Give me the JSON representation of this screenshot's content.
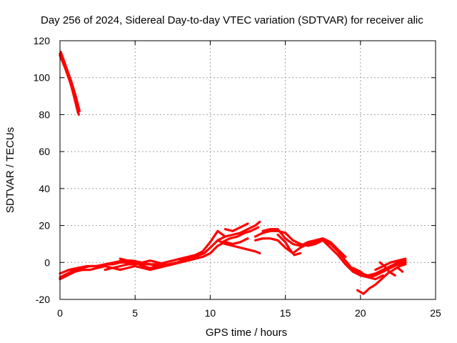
{
  "chart_data": {
    "type": "scatter",
    "title": "Day 256 of 2024, Sidereal Day-to-day VTEC variation (SDTVAR) for receiver alic",
    "xlabel": "GPS time / hours",
    "ylabel": "SDTVAR / TECUs",
    "xlim": [
      0,
      25
    ],
    "ylim": [
      -20,
      120
    ],
    "xticks": [
      0,
      5,
      10,
      15,
      20,
      25
    ],
    "yticks": [
      -20,
      0,
      20,
      40,
      60,
      80,
      100,
      120
    ],
    "grid": true,
    "series_color": "#ff0000",
    "series": [
      {
        "segments": [
          [
            [
              0.0,
              113
            ],
            [
              0.3,
              107
            ],
            [
              0.6,
              100
            ],
            [
              0.9,
              91
            ],
            [
              1.2,
              81
            ]
          ],
          [
            [
              0.0,
              112
            ],
            [
              0.35,
              105
            ],
            [
              0.7,
              97
            ],
            [
              1.0,
              89
            ],
            [
              1.25,
              80
            ]
          ],
          [
            [
              0.05,
              114
            ],
            [
              0.4,
              106
            ],
            [
              0.75,
              98
            ],
            [
              1.05,
              90
            ],
            [
              1.3,
              82
            ]
          ],
          [
            [
              0.0,
              -8
            ],
            [
              0.5,
              -6
            ],
            [
              1.0,
              -4
            ],
            [
              1.5,
              -3
            ],
            [
              2.0,
              -2
            ],
            [
              2.5,
              -2
            ],
            [
              3.0,
              -1
            ],
            [
              3.5,
              -1
            ],
            [
              4.0,
              0
            ],
            [
              4.5,
              0
            ],
            [
              5.0,
              0
            ],
            [
              5.5,
              -1
            ],
            [
              6.0,
              -1
            ],
            [
              6.5,
              -1
            ],
            [
              7.0,
              0
            ],
            [
              7.5,
              1
            ],
            [
              8.0,
              2
            ],
            [
              8.5,
              3
            ],
            [
              9.0,
              4
            ],
            [
              9.5,
              6
            ],
            [
              10.0,
              11
            ],
            [
              10.5,
              17
            ],
            [
              11.0,
              14
            ]
          ],
          [
            [
              0.0,
              -6
            ],
            [
              0.6,
              -4
            ],
            [
              1.2,
              -3
            ],
            [
              1.8,
              -2
            ],
            [
              2.4,
              -2
            ],
            [
              3.0,
              -1
            ],
            [
              3.6,
              0
            ],
            [
              4.2,
              1
            ],
            [
              4.8,
              1
            ],
            [
              5.4,
              0
            ],
            [
              6.0,
              -1
            ],
            [
              6.6,
              -2
            ],
            [
              7.2,
              -1
            ],
            [
              7.8,
              0
            ],
            [
              8.4,
              2
            ],
            [
              9.0,
              3
            ],
            [
              9.6,
              5
            ],
            [
              10.0,
              8
            ],
            [
              10.5,
              12
            ],
            [
              11.0,
              10
            ],
            [
              11.5,
              9
            ],
            [
              12.0,
              8
            ],
            [
              12.5,
              7
            ],
            [
              13.0,
              6
            ],
            [
              13.3,
              5
            ]
          ],
          [
            [
              0.0,
              -9
            ],
            [
              0.5,
              -7
            ],
            [
              1.0,
              -5
            ],
            [
              1.5,
              -4
            ],
            [
              2.0,
              -4
            ],
            [
              2.5,
              -3
            ],
            [
              3.0,
              -2
            ],
            [
              3.5,
              -3
            ],
            [
              4.0,
              -4
            ],
            [
              4.5,
              -3
            ],
            [
              5.0,
              -2
            ],
            [
              5.5,
              -3
            ],
            [
              6.0,
              -4
            ],
            [
              6.5,
              -3
            ],
            [
              7.0,
              -2
            ],
            [
              7.5,
              -1
            ],
            [
              8.0,
              0
            ],
            [
              8.5,
              1
            ],
            [
              9.0,
              2
            ],
            [
              9.5,
              3
            ],
            [
              10.0,
              5
            ],
            [
              10.5,
              9
            ],
            [
              11.0,
              11
            ],
            [
              11.5,
              10
            ],
            [
              12.0,
              11
            ],
            [
              12.5,
              13
            ]
          ],
          [
            [
              4.0,
              2
            ],
            [
              4.5,
              1
            ],
            [
              5.0,
              0
            ],
            [
              5.5,
              -2
            ],
            [
              6.0,
              -3
            ],
            [
              6.5,
              -2
            ]
          ],
          [
            [
              3.0,
              -4
            ],
            [
              3.5,
              -3
            ],
            [
              4.0,
              -2
            ],
            [
              4.5,
              -1
            ],
            [
              5.0,
              -1
            ],
            [
              5.5,
              0
            ],
            [
              6.0,
              1
            ],
            [
              6.5,
              0
            ],
            [
              7.0,
              -1
            ]
          ],
          [
            [
              10.5,
              12
            ],
            [
              11.0,
              14
            ],
            [
              11.5,
              15
            ],
            [
              12.0,
              16
            ],
            [
              12.5,
              18
            ],
            [
              13.0,
              20
            ],
            [
              13.3,
              22
            ]
          ],
          [
            [
              10.8,
              11
            ],
            [
              11.3,
              13
            ],
            [
              11.8,
              14
            ],
            [
              12.3,
              16
            ],
            [
              12.7,
              17
            ],
            [
              13.2,
              19
            ]
          ],
          [
            [
              11.0,
              18
            ],
            [
              11.5,
              17
            ],
            [
              12.0,
              19
            ],
            [
              12.5,
              21
            ]
          ],
          [
            [
              13.0,
              14
            ],
            [
              13.5,
              16
            ],
            [
              14.0,
              17
            ],
            [
              14.5,
              17
            ],
            [
              15.0,
              16
            ],
            [
              15.5,
              12
            ],
            [
              16.0,
              10
            ],
            [
              16.5,
              9
            ],
            [
              17.0,
              10
            ],
            [
              17.5,
              12
            ],
            [
              18.0,
              10
            ],
            [
              18.5,
              6
            ],
            [
              19.0,
              1
            ],
            [
              19.5,
              -4
            ],
            [
              20.0,
              -6
            ],
            [
              20.5,
              -7
            ],
            [
              21.0,
              -6
            ],
            [
              21.5,
              -4
            ],
            [
              22.0,
              -2
            ],
            [
              22.5,
              0
            ],
            [
              23.0,
              1
            ]
          ],
          [
            [
              13.0,
              12
            ],
            [
              13.5,
              13
            ],
            [
              14.0,
              13
            ],
            [
              14.5,
              12
            ],
            [
              15.0,
              8
            ],
            [
              15.5,
              5
            ],
            [
              16.0,
              8
            ],
            [
              16.5,
              10
            ],
            [
              17.0,
              11
            ],
            [
              17.5,
              12
            ],
            [
              18.0,
              8
            ],
            [
              18.5,
              4
            ],
            [
              19.0,
              -1
            ],
            [
              19.5,
              -5
            ],
            [
              20.0,
              -7
            ],
            [
              20.5,
              -8
            ],
            [
              21.0,
              -7
            ],
            [
              21.5,
              -5
            ],
            [
              22.0,
              -3
            ],
            [
              22.5,
              -1
            ],
            [
              23.0,
              0
            ]
          ],
          [
            [
              13.5,
              17
            ],
            [
              14.0,
              18
            ],
            [
              14.5,
              18
            ],
            [
              15.0,
              13
            ],
            [
              15.5,
              10
            ],
            [
              16.0,
              9
            ],
            [
              16.5,
              11
            ],
            [
              17.0,
              12
            ],
            [
              17.5,
              13
            ],
            [
              18.0,
              11
            ],
            [
              18.5,
              7
            ],
            [
              19.0,
              3
            ]
          ],
          [
            [
              14.5,
              15
            ],
            [
              15.0,
              11
            ],
            [
              15.3,
              7
            ],
            [
              15.6,
              4
            ],
            [
              16.0,
              5
            ]
          ],
          [
            [
              19.5,
              -3
            ],
            [
              20.0,
              -5
            ],
            [
              20.5,
              -8
            ],
            [
              21.0,
              -9
            ],
            [
              21.5,
              -7
            ]
          ],
          [
            [
              19.8,
              -15
            ],
            [
              20.2,
              -17
            ],
            [
              20.6,
              -14
            ],
            [
              21.0,
              -12
            ],
            [
              21.4,
              -9
            ],
            [
              21.8,
              -6
            ],
            [
              22.2,
              -4
            ],
            [
              22.6,
              -2
            ],
            [
              23.0,
              -1
            ]
          ],
          [
            [
              21.0,
              -4
            ],
            [
              21.5,
              -2
            ],
            [
              22.0,
              0
            ],
            [
              22.5,
              1
            ],
            [
              23.0,
              2
            ],
            [
              22.8,
              0
            ],
            [
              22.5,
              -3
            ],
            [
              22.8,
              -5
            ]
          ],
          [
            [
              21.3,
              0
            ],
            [
              21.6,
              -2
            ],
            [
              21.9,
              -5
            ],
            [
              22.3,
              -7
            ]
          ]
        ]
      }
    ]
  }
}
